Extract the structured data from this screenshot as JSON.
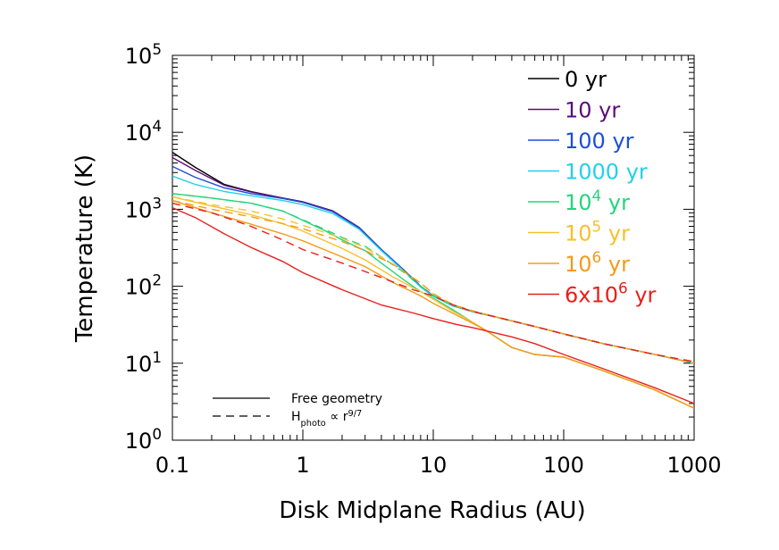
{
  "chart_data": {
    "type": "line",
    "xlabel": "Disk Midplane Radius (AU)",
    "ylabel": "Temperature (K)",
    "xscale": "log",
    "yscale": "log",
    "xlim": [
      0.1,
      1000
    ],
    "ylim": [
      1,
      100000
    ],
    "grid": false,
    "legend_placement": "top-right",
    "x_ticks": [
      {
        "value": 0.1,
        "label": "0.1"
      },
      {
        "value": 1,
        "label": "1"
      },
      {
        "value": 10,
        "label": "10"
      },
      {
        "value": 100,
        "label": "100"
      },
      {
        "value": 1000,
        "label": "1000"
      }
    ],
    "y_ticks": [
      {
        "value": 1,
        "base": "10",
        "exp": "0"
      },
      {
        "value": 10,
        "base": "10",
        "exp": "1"
      },
      {
        "value": 100,
        "base": "10",
        "exp": "2"
      },
      {
        "value": 1000,
        "base": "10",
        "exp": "3"
      },
      {
        "value": 10000,
        "base": "10",
        "exp": "4"
      },
      {
        "value": 100000,
        "base": "10",
        "exp": "5"
      }
    ],
    "line_styles": [
      {
        "dash": false,
        "parts": [
          {
            "t": "Free geometry"
          }
        ]
      },
      {
        "dash": true,
        "parts": [
          {
            "t": "H"
          },
          {
            "t": "photo",
            "sub": true
          },
          {
            "t": " ∝ r"
          },
          {
            "t": "9/7",
            "sup": true
          }
        ]
      }
    ],
    "series": [
      {
        "name": "0 yr",
        "label_parts": [
          {
            "t": "0 yr"
          }
        ],
        "color": "#000000",
        "solid": {
          "x": [
            0.1,
            0.15,
            0.25,
            0.4,
            0.7,
            1.0,
            1.7,
            2.7,
            4.0,
            6.0,
            8.0,
            10,
            14,
            20,
            30,
            60,
            100,
            200,
            500,
            1000
          ],
          "y": [
            5500,
            3500,
            2100,
            1700,
            1400,
            1250,
            950,
            580,
            300,
            160,
            100,
            75,
            56,
            47,
            40,
            30,
            24,
            18,
            13,
            10
          ]
        }
      },
      {
        "name": "10 yr",
        "label_parts": [
          {
            "t": "10 yr"
          }
        ],
        "color": "#5b0b7a",
        "solid": {
          "x": [
            0.1,
            0.15,
            0.25,
            0.4,
            0.7,
            1.0,
            1.7,
            2.7,
            4.0,
            6.0,
            8.0,
            10,
            14,
            20,
            30,
            60,
            100,
            200,
            500,
            1000
          ],
          "y": [
            4700,
            3200,
            2050,
            1680,
            1400,
            1250,
            950,
            580,
            300,
            160,
            100,
            75,
            56,
            47,
            40,
            30,
            24,
            18,
            13,
            10
          ]
        }
      },
      {
        "name": "100 yr",
        "label_parts": [
          {
            "t": "100 yr"
          }
        ],
        "color": "#1c4ed8",
        "solid": {
          "x": [
            0.1,
            0.15,
            0.25,
            0.4,
            0.7,
            1.0,
            1.7,
            2.7,
            4.0,
            6.0,
            8.0,
            10,
            14,
            20,
            30,
            60,
            100,
            200,
            500,
            1000
          ],
          "y": [
            3600,
            2600,
            1900,
            1600,
            1380,
            1230,
            930,
            570,
            300,
            160,
            100,
            75,
            56,
            47,
            40,
            30,
            24,
            18,
            13,
            10
          ]
        }
      },
      {
        "name": "1000 yr",
        "label_parts": [
          {
            "t": "1000 yr"
          }
        ],
        "color": "#22d0e8",
        "solid": {
          "x": [
            0.1,
            0.15,
            0.25,
            0.4,
            0.7,
            1.0,
            1.7,
            2.7,
            4.0,
            6.0,
            8.0,
            10,
            14,
            20,
            30,
            60,
            100,
            200,
            500,
            1000
          ],
          "y": [
            2700,
            2100,
            1700,
            1500,
            1300,
            1150,
            880,
            550,
            290,
            155,
            98,
            74,
            56,
            47,
            40,
            30,
            24,
            18,
            13,
            10
          ]
        }
      },
      {
        "name": "10⁴ yr",
        "label_parts": [
          {
            "t": "10"
          },
          {
            "t": "4",
            "sup": true
          },
          {
            "t": " yr"
          }
        ],
        "color": "#22d67a",
        "solid": {
          "x": [
            0.1,
            0.2,
            0.4,
            0.7,
            1.0,
            1.5,
            2.0,
            3.0,
            4.0,
            6.0,
            8.0,
            10,
            14,
            20,
            25,
            40,
            60,
            100,
            200,
            500,
            1000
          ],
          "y": [
            1600,
            1400,
            1200,
            950,
            720,
            520,
            400,
            290,
            200,
            120,
            85,
            70,
            50,
            34,
            27,
            16,
            13,
            12,
            8,
            4.5,
            2.6
          ]
        },
        "dashed": {
          "x": [
            0.1,
            0.2,
            0.4,
            0.7,
            1.0,
            1.5,
            2.0,
            3.0,
            4.0,
            6.0,
            8.0,
            10,
            14,
            20,
            30,
            60,
            100,
            200,
            500,
            1000
          ],
          "y": [
            1600,
            1400,
            1200,
            950,
            730,
            540,
            430,
            330,
            240,
            150,
            100,
            76,
            56,
            47,
            40,
            30,
            24,
            18,
            13,
            10
          ]
        }
      },
      {
        "name": "10⁵ yr",
        "label_parts": [
          {
            "t": "10"
          },
          {
            "t": "5",
            "sup": true
          },
          {
            "t": " yr"
          }
        ],
        "color": "#f7c12a",
        "solid": {
          "x": [
            0.1,
            0.2,
            0.4,
            0.7,
            1.0,
            2.0,
            3.0,
            5.0,
            8.0,
            10,
            14,
            20,
            25,
            40,
            60,
            100,
            200,
            500,
            1000
          ],
          "y": [
            1450,
            1100,
            850,
            650,
            520,
            310,
            220,
            130,
            85,
            68,
            48,
            34,
            27,
            16,
            13,
            12,
            8,
            4.5,
            2.6
          ]
        },
        "dashed": {
          "x": [
            0.1,
            0.2,
            0.4,
            0.7,
            1.0,
            2.0,
            3.0,
            5.0,
            8.0,
            10,
            14,
            20,
            30,
            60,
            100,
            200,
            500,
            1000
          ],
          "y": [
            1450,
            1150,
            950,
            750,
            620,
            420,
            320,
            190,
            110,
            80,
            58,
            48,
            40,
            30,
            24,
            18,
            13,
            10
          ]
        }
      },
      {
        "name": "10⁶ yr",
        "label_parts": [
          {
            "t": "10"
          },
          {
            "t": "6",
            "sup": true
          },
          {
            "t": " yr"
          }
        ],
        "color": "#f59a1a",
        "solid": {
          "x": [
            0.1,
            0.2,
            0.4,
            0.7,
            1.0,
            2.0,
            3.0,
            5.0,
            8.0,
            10,
            14,
            20,
            25,
            40,
            60,
            100,
            200,
            500,
            1000
          ],
          "y": [
            1300,
            900,
            640,
            480,
            390,
            240,
            180,
            110,
            75,
            60,
            45,
            33,
            27,
            16,
            13,
            12,
            8,
            4.5,
            2.6
          ]
        },
        "dashed": {
          "x": [
            0.1,
            0.2,
            0.4,
            0.7,
            1.0,
            2.0,
            3.0,
            5.0,
            8.0,
            10,
            14,
            20,
            30,
            60,
            100,
            200,
            500,
            1000
          ],
          "y": [
            1300,
            1000,
            800,
            650,
            560,
            380,
            290,
            190,
            110,
            80,
            58,
            48,
            40,
            30,
            24,
            18,
            13,
            10
          ]
        }
      },
      {
        "name": "6x10⁶ yr",
        "label_parts": [
          {
            "t": "6x10"
          },
          {
            "t": "6",
            "sup": true
          },
          {
            "t": " yr"
          }
        ],
        "color": "#e8201a",
        "solid": {
          "x": [
            0.1,
            0.15,
            0.25,
            0.4,
            0.7,
            1.0,
            2.0,
            4.0,
            7.0,
            10,
            15,
            20,
            40,
            60,
            100,
            200,
            500,
            1000
          ],
          "y": [
            1050,
            780,
            480,
            320,
            210,
            150,
            90,
            57,
            45,
            38,
            32,
            29,
            22,
            18,
            13,
            8.5,
            4.8,
            3.0
          ]
        },
        "dashed": {
          "x": [
            0.1,
            0.2,
            0.4,
            0.7,
            1.0,
            2.0,
            4.0,
            7.0,
            10,
            14,
            20,
            30,
            60,
            100,
            200,
            500,
            1000
          ],
          "y": [
            1200,
            900,
            600,
            400,
            300,
            200,
            130,
            90,
            75,
            58,
            47,
            40,
            30,
            24,
            18,
            13,
            10.5
          ]
        }
      }
    ]
  }
}
